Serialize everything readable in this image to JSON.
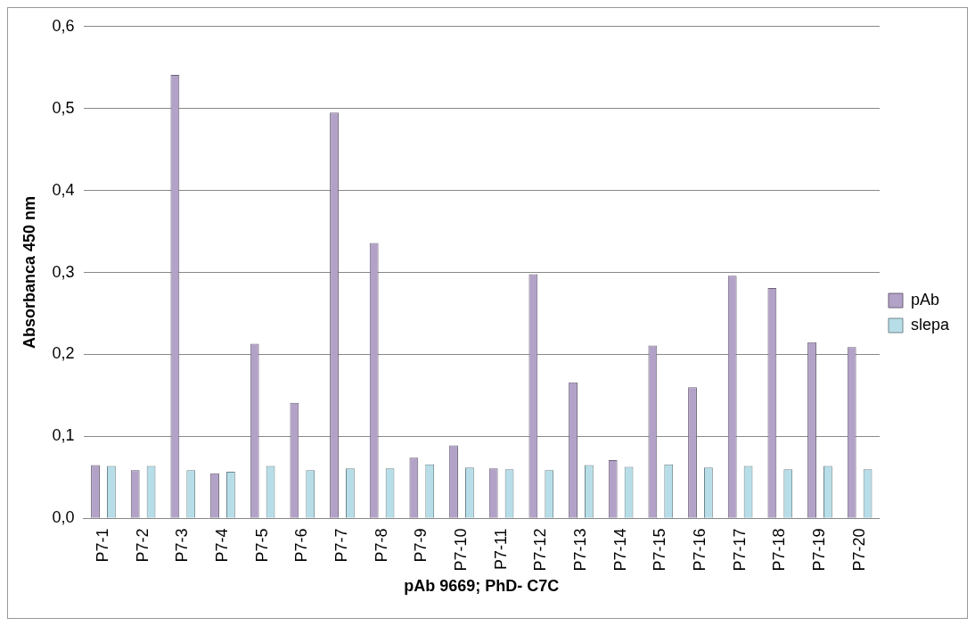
{
  "chart_data": {
    "type": "bar",
    "xlabel": "pAb 9669; PhD- C7C",
    "ylabel": "Absorbanca 450 nm",
    "categories": [
      "P7-1",
      "P7-2",
      "P7-3",
      "P7-4",
      "P7-5",
      "P7-6",
      "P7-7",
      "P7-8",
      "P7-9",
      "P7-10",
      "P7-11",
      "P7-12",
      "P7-13",
      "P7-14",
      "P7-15",
      "P7-16",
      "P7-17",
      "P7-18",
      "P7-19",
      "P7-20"
    ],
    "series": [
      {
        "name": "pAb",
        "color": "#b3a2c7",
        "values": [
          0.065,
          0.059,
          0.541,
          0.055,
          0.213,
          0.141,
          0.495,
          0.336,
          0.074,
          0.089,
          0.061,
          0.298,
          0.166,
          0.071,
          0.211,
          0.16,
          0.296,
          0.281,
          0.215,
          0.209
        ]
      },
      {
        "name": "slepa",
        "color": "#b7dee8",
        "values": [
          0.064,
          0.064,
          0.059,
          0.057,
          0.064,
          0.059,
          0.061,
          0.061,
          0.066,
          0.062,
          0.06,
          0.059,
          0.065,
          0.063,
          0.066,
          0.062,
          0.064,
          0.06,
          0.064,
          0.06
        ]
      }
    ],
    "ylim": [
      0,
      0.6
    ],
    "yticks": [
      {
        "value": 0,
        "label": "0,0"
      },
      {
        "value": 0.1,
        "label": "0,1"
      },
      {
        "value": 0.2,
        "label": "0,2"
      },
      {
        "value": 0.3,
        "label": "0,3"
      },
      {
        "value": 0.4,
        "label": "0,4"
      },
      {
        "value": 0.5,
        "label": "0,5"
      },
      {
        "value": 0.6,
        "label": "0,6"
      }
    ],
    "grid": "y",
    "legend": "right"
  }
}
